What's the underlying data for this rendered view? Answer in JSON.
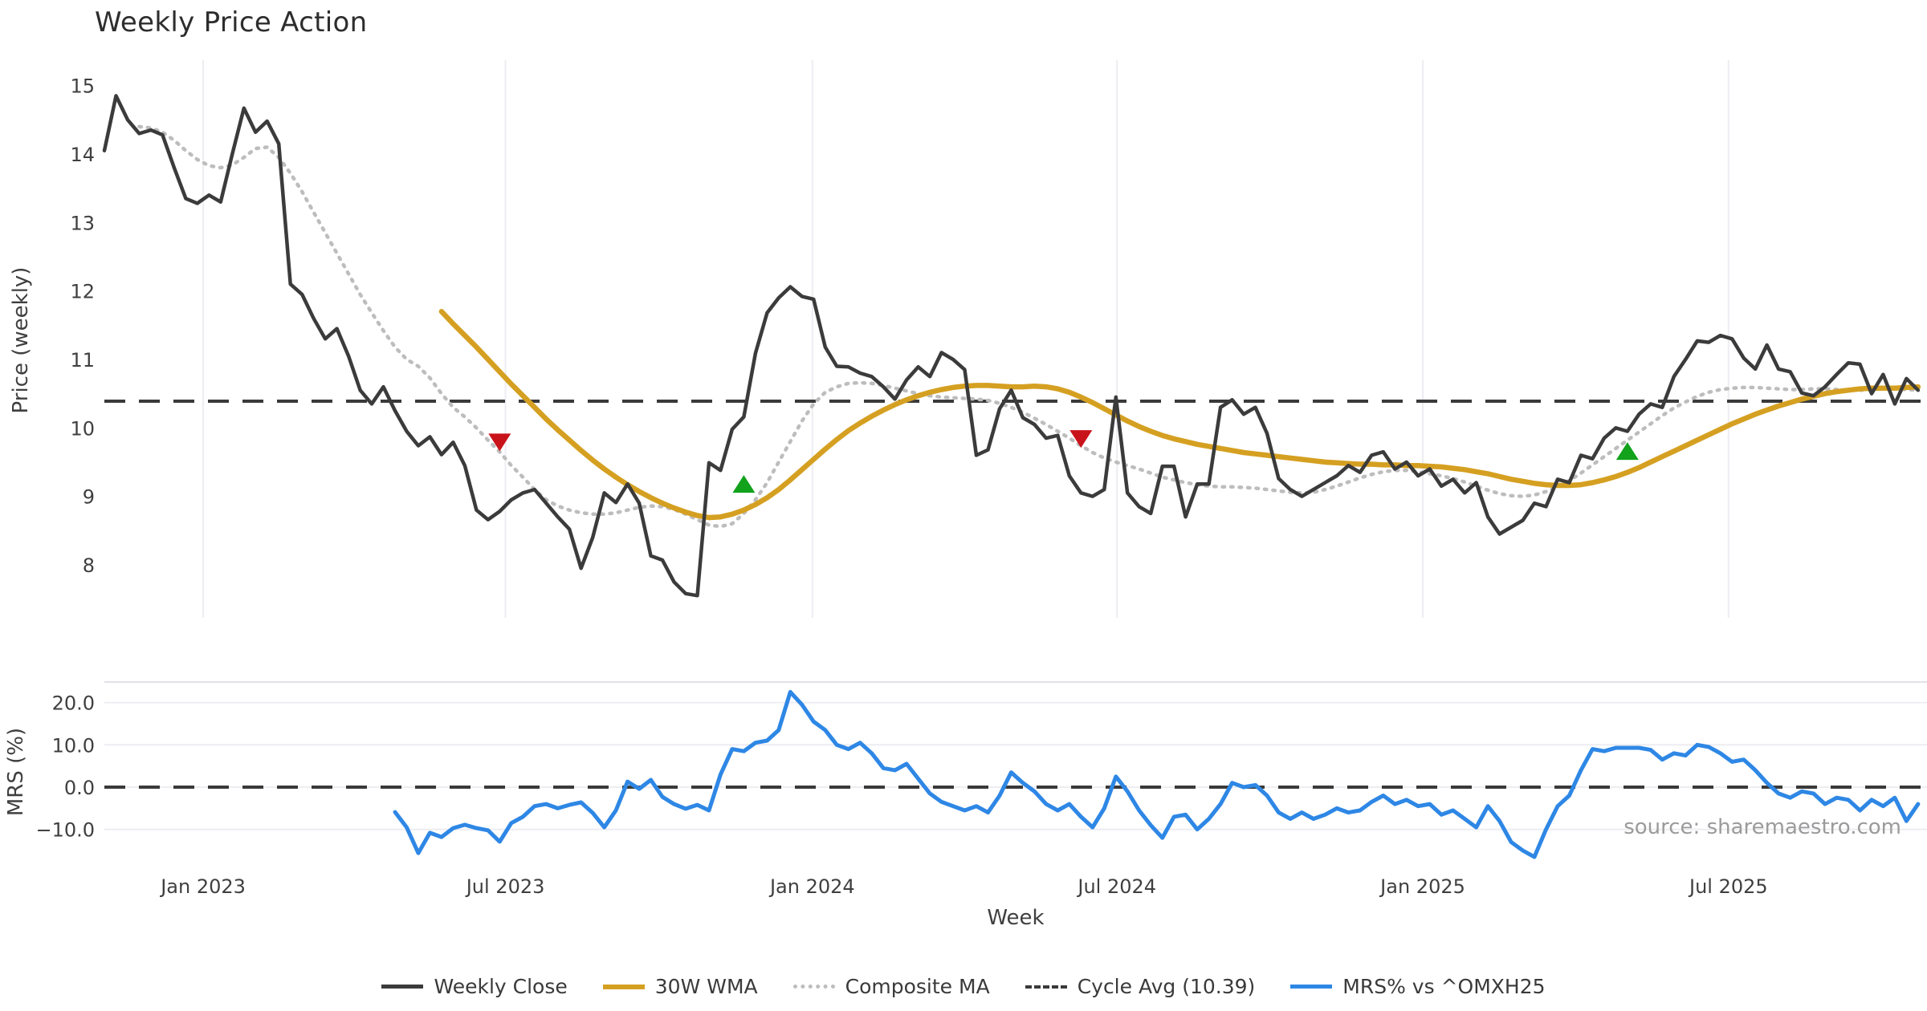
{
  "title": "Weekly Price Action",
  "source_note": "source: sharemaestro.com",
  "colors": {
    "weekly_close": "#3b3b3b",
    "wma_30w": "#d5a021",
    "composite_ma": "#bdbdbd",
    "cycle_avg": "#3a3a3a",
    "mrs": "#2e87e5",
    "sell_marker": "#c9131a",
    "buy_marker": "#12a21c",
    "gridline": "#ededf2",
    "panel_border": "#e0e0e6",
    "tick_text": "#3f3f3f",
    "source_text": "#9b9b9b"
  },
  "chart_data": {
    "type": "line",
    "title": "Weekly Price Action",
    "xlabel": "Week",
    "x_unit": "weeks (index 0 = first plotted week, late 2022; 1 point per week)",
    "x_ticks": [
      {
        "label": "Jan 2023",
        "week": 8.5
      },
      {
        "label": "Jul 2023",
        "week": 34.5
      },
      {
        "label": "Jan 2024",
        "week": 60.9
      },
      {
        "label": "Jul 2024",
        "week": 87.1
      },
      {
        "label": "Jan 2025",
        "week": 113.4
      },
      {
        "label": "Jul 2025",
        "week": 139.7
      }
    ],
    "legend": [
      {
        "label": "Weekly Close",
        "color": "#3b3b3b",
        "pattern": "solid",
        "weight": 5
      },
      {
        "label": "30W WMA",
        "color": "#d5a021",
        "pattern": "solid",
        "weight": 6
      },
      {
        "label": "Composite MA",
        "color": "#bdbdbd",
        "pattern": "dotted",
        "weight": 5
      },
      {
        "label": "Cycle Avg (10.39)",
        "color": "#3a3a3a",
        "pattern": "dashed",
        "weight": 4
      },
      {
        "label": "MRS% vs ^OMXH25",
        "color": "#2e87e5",
        "pattern": "solid",
        "weight": 5
      }
    ],
    "panels": [
      {
        "ylabel": "Price (weekly)",
        "ylim": [
          7.3,
          15.4
        ],
        "yticks": [
          15,
          14,
          13,
          12,
          11,
          10,
          9,
          8
        ],
        "cycle_avg": 10.39,
        "series": [
          {
            "name": "Weekly Close",
            "start_week": 0,
            "values": [
              14.05,
              14.85,
              14.5,
              14.3,
              14.35,
              14.28,
              13.8,
              13.35,
              13.28,
              13.4,
              13.3,
              14.0,
              14.67,
              14.32,
              14.48,
              14.15,
              12.1,
              11.95,
              11.6,
              11.3,
              11.45,
              11.05,
              10.55,
              10.35,
              10.6,
              10.25,
              9.95,
              9.74,
              9.87,
              9.61,
              9.79,
              9.45,
              8.8,
              8.66,
              8.78,
              8.95,
              9.05,
              9.1,
              8.9,
              8.7,
              8.52,
              7.95,
              8.4,
              9.05,
              8.91,
              9.18,
              8.9,
              8.13,
              8.07,
              7.75,
              7.58,
              7.55,
              9.49,
              9.38,
              9.98,
              10.16,
              11.09,
              11.68,
              11.9,
              12.06,
              11.92,
              11.88,
              11.18,
              10.9,
              10.89,
              10.8,
              10.75,
              10.6,
              10.42,
              10.7,
              10.89,
              10.75,
              11.1,
              11.0,
              10.85,
              9.6,
              9.68,
              10.28,
              10.55,
              10.15,
              10.05,
              9.85,
              9.89,
              9.3,
              9.05,
              9.0,
              9.1,
              10.45,
              9.05,
              8.85,
              8.75,
              9.44,
              9.44,
              8.7,
              9.18,
              9.18,
              10.3,
              10.41,
              10.2,
              10.3,
              9.92,
              9.26,
              9.1,
              9.0,
              9.1,
              9.2,
              9.3,
              9.45,
              9.35,
              9.6,
              9.65,
              9.4,
              9.5,
              9.3,
              9.4,
              9.15,
              9.25,
              9.05,
              9.2,
              8.7,
              8.45,
              8.55,
              8.65,
              8.9,
              8.85,
              9.25,
              9.2,
              9.6,
              9.55,
              9.85,
              10.0,
              9.95,
              10.2,
              10.35,
              10.3,
              10.75,
              11.0,
              11.27,
              11.25,
              11.35,
              11.3,
              11.02,
              10.86,
              11.21,
              10.86,
              10.82,
              10.51,
              10.47,
              10.6,
              10.78,
              10.95,
              10.93,
              10.5,
              10.78,
              10.35,
              10.72,
              10.55
            ]
          },
          {
            "name": "30W WMA",
            "start_week": 29,
            "values": [
              11.7,
              11.52,
              11.35,
              11.18,
              11.0,
              10.82,
              10.64,
              10.47,
              10.3,
              10.13,
              9.97,
              9.82,
              9.67,
              9.53,
              9.4,
              9.28,
              9.17,
              9.07,
              8.98,
              8.9,
              8.83,
              8.77,
              8.72,
              8.69,
              8.7,
              8.74,
              8.8,
              8.88,
              8.98,
              9.1,
              9.24,
              9.39,
              9.54,
              9.69,
              9.83,
              9.96,
              10.07,
              10.17,
              10.26,
              10.34,
              10.41,
              10.47,
              10.52,
              10.56,
              10.59,
              10.61,
              10.62,
              10.62,
              10.61,
              10.6,
              10.6,
              10.61,
              10.6,
              10.57,
              10.52,
              10.45,
              10.37,
              10.28,
              10.19,
              10.1,
              10.02,
              9.95,
              9.89,
              9.84,
              9.8,
              9.76,
              9.73,
              9.7,
              9.67,
              9.64,
              9.62,
              9.6,
              9.58,
              9.56,
              9.54,
              9.52,
              9.5,
              9.49,
              9.48,
              9.47,
              9.47,
              9.46,
              9.46,
              9.45,
              9.45,
              9.44,
              9.43,
              9.41,
              9.39,
              9.36,
              9.33,
              9.29,
              9.25,
              9.22,
              9.19,
              9.17,
              9.16,
              9.16,
              9.17,
              9.2,
              9.24,
              9.29,
              9.35,
              9.42,
              9.5,
              9.58,
              9.66,
              9.74,
              9.82,
              9.9,
              9.98,
              10.06,
              10.13,
              10.2,
              10.26,
              10.32,
              10.37,
              10.42,
              10.46,
              10.5,
              10.53,
              10.55,
              10.57,
              10.58,
              10.58,
              10.58,
              10.59,
              10.6
            ]
          },
          {
            "name": "Composite MA",
            "start_week": 3,
            "values": [
              14.4,
              14.38,
              14.32,
              14.2,
              14.05,
              13.92,
              13.83,
              13.8,
              13.84,
              13.95,
              14.08,
              14.1,
              13.95,
              13.72,
              13.45,
              13.15,
              12.85,
              12.55,
              12.25,
              11.95,
              11.68,
              11.42,
              11.18,
              11.0,
              10.9,
              10.73,
              10.5,
              10.3,
              10.16,
              10.0,
              9.82,
              9.65,
              9.45,
              9.28,
              9.1,
              8.95,
              8.86,
              8.8,
              8.76,
              8.74,
              8.74,
              8.76,
              8.8,
              8.84,
              8.86,
              8.85,
              8.81,
              8.74,
              8.66,
              8.58,
              8.56,
              8.6,
              8.75,
              8.95,
              9.2,
              9.5,
              9.8,
              10.1,
              10.35,
              10.52,
              10.6,
              10.65,
              10.66,
              10.65,
              10.62,
              10.58,
              10.54,
              10.5,
              10.47,
              10.45,
              10.44,
              10.43,
              10.42,
              10.4,
              10.36,
              10.3,
              10.23,
              10.14,
              10.05,
              9.95,
              9.85,
              9.74,
              9.64,
              9.56,
              9.5,
              9.45,
              9.4,
              9.34,
              9.28,
              9.24,
              9.2,
              9.17,
              9.15,
              9.14,
              9.14,
              9.13,
              9.12,
              9.1,
              9.08,
              9.06,
              9.05,
              9.06,
              9.1,
              9.15,
              9.21,
              9.27,
              9.32,
              9.36,
              9.38,
              9.38,
              9.36,
              9.33,
              9.3,
              9.26,
              9.21,
              9.15,
              9.09,
              9.04,
              9.01,
              9.0,
              9.02,
              9.07,
              9.14,
              9.23,
              9.34,
              9.46,
              9.58,
              9.7,
              9.82,
              9.94,
              10.06,
              10.18,
              10.29,
              10.38,
              10.46,
              10.52,
              10.56,
              10.58,
              10.59,
              10.59,
              10.58,
              10.57,
              10.56,
              10.56,
              10.57,
              10.57,
              10.56,
              10.55,
              10.55,
              10.56,
              10.57,
              10.57,
              10.56,
              10.55
            ]
          }
        ],
        "markers": [
          {
            "name": "sell-signal-marker",
            "shape": "triangle-down",
            "week": 34,
            "price": 9.8,
            "color": "#c9131a"
          },
          {
            "name": "buy-signal-marker",
            "shape": "triangle-up",
            "week": 55,
            "price": 9.17,
            "color": "#12a21c"
          },
          {
            "name": "sell-signal-marker",
            "shape": "triangle-down",
            "week": 84,
            "price": 9.85,
            "color": "#c9131a"
          },
          {
            "name": "buy-signal-marker",
            "shape": "triangle-up",
            "week": 131,
            "price": 9.65,
            "color": "#12a21c"
          }
        ]
      },
      {
        "ylabel": "MRS (%)",
        "ylim": [
          -18,
          25
        ],
        "yticks": [
          {
            "label": "20.0",
            "value": 20
          },
          {
            "label": "10.0",
            "value": 10
          },
          {
            "label": "0.0",
            "value": 0
          },
          {
            "label": "−10.0",
            "value": -10
          }
        ],
        "zero_line": 0,
        "series": [
          {
            "name": "MRS% vs ^OMXH25",
            "start_week": 25,
            "values": [
              -5.9,
              -9.5,
              -15.6,
              -10.8,
              -11.8,
              -9.7,
              -8.9,
              -9.7,
              -10.2,
              -12.9,
              -8.5,
              -7.0,
              -4.5,
              -4.0,
              -5.0,
              -4.2,
              -3.6,
              -6.1,
              -9.5,
              -5.5,
              1.3,
              -0.4,
              1.7,
              -2.3,
              -4.0,
              -5.1,
              -4.2,
              -5.5,
              3.0,
              9.0,
              8.5,
              10.5,
              11.0,
              13.5,
              22.5,
              19.5,
              15.5,
              13.5,
              10.0,
              9.0,
              10.5,
              8.0,
              4.5,
              4.0,
              5.5,
              2.0,
              -1.5,
              -3.5,
              -4.5,
              -5.5,
              -4.5,
              -6.0,
              -2.0,
              3.5,
              1.0,
              -1.0,
              -4.0,
              -5.5,
              -4.0,
              -7.0,
              -9.5,
              -5.0,
              2.5,
              -1.0,
              -5.5,
              -9.0,
              -12.0,
              -7.0,
              -6.5,
              -10.0,
              -7.5,
              -4.0,
              1.0,
              0.0,
              0.5,
              -2.0,
              -6.0,
              -7.5,
              -6.0,
              -7.5,
              -6.5,
              -5.0,
              -6.0,
              -5.5,
              -3.5,
              -2.0,
              -4.0,
              -3.0,
              -4.5,
              -4.0,
              -6.5,
              -5.5,
              -7.5,
              -9.5,
              -4.5,
              -8.0,
              -13.0,
              -15.0,
              -16.5,
              -10.0,
              -4.5,
              -2.0,
              4.0,
              9.0,
              8.5,
              9.3,
              9.3,
              9.3,
              8.8,
              6.5,
              8.0,
              7.5,
              10.0,
              9.5,
              8.0,
              6.0,
              6.5,
              4.0,
              1.0,
              -1.5,
              -2.5,
              -1.0,
              -1.5,
              -4.0,
              -2.5,
              -3.0,
              -5.5,
              -3.0,
              -4.5,
              -2.5,
              -8.0,
              -4.0
            ]
          }
        ]
      }
    ]
  }
}
